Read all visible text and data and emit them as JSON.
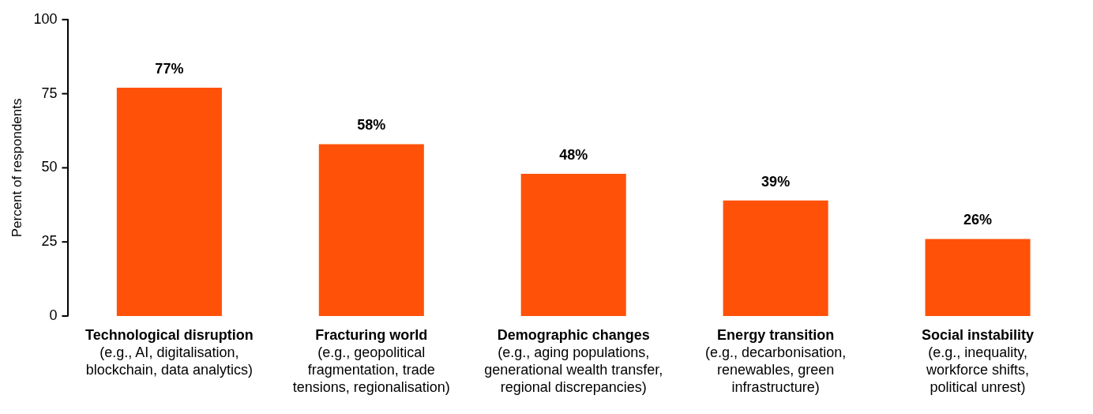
{
  "chart_data": {
    "type": "bar",
    "ylabel": "Percent of respondents",
    "categories": [
      "Technological disruption\n(e.g., AI, digitalisation,\nblockchain, data analytics)",
      "Fracturing world\n(e.g., geopolitical\nfragmentation, trade\ntensions, regionalisation)",
      "Demographic changes\n(e.g., aging populations,\ngenerational wealth transfer,\nregional discrepancies)",
      "Energy transition\n(e.g., decarbonisation,\nrenewables, green\ninfrastructure)",
      "Social instability\n(e.g., inequality,\nworkforce shifts,\npolitical unrest)"
    ],
    "values": [
      77,
      58,
      48,
      39,
      26
    ],
    "value_labels": [
      "77%",
      "58%",
      "48%",
      "39%",
      "26%"
    ],
    "color": "#ff5208",
    "ylim": [
      0,
      100
    ],
    "yticks": [
      0,
      25,
      50,
      75,
      100
    ],
    "grid": false,
    "legend": false
  }
}
